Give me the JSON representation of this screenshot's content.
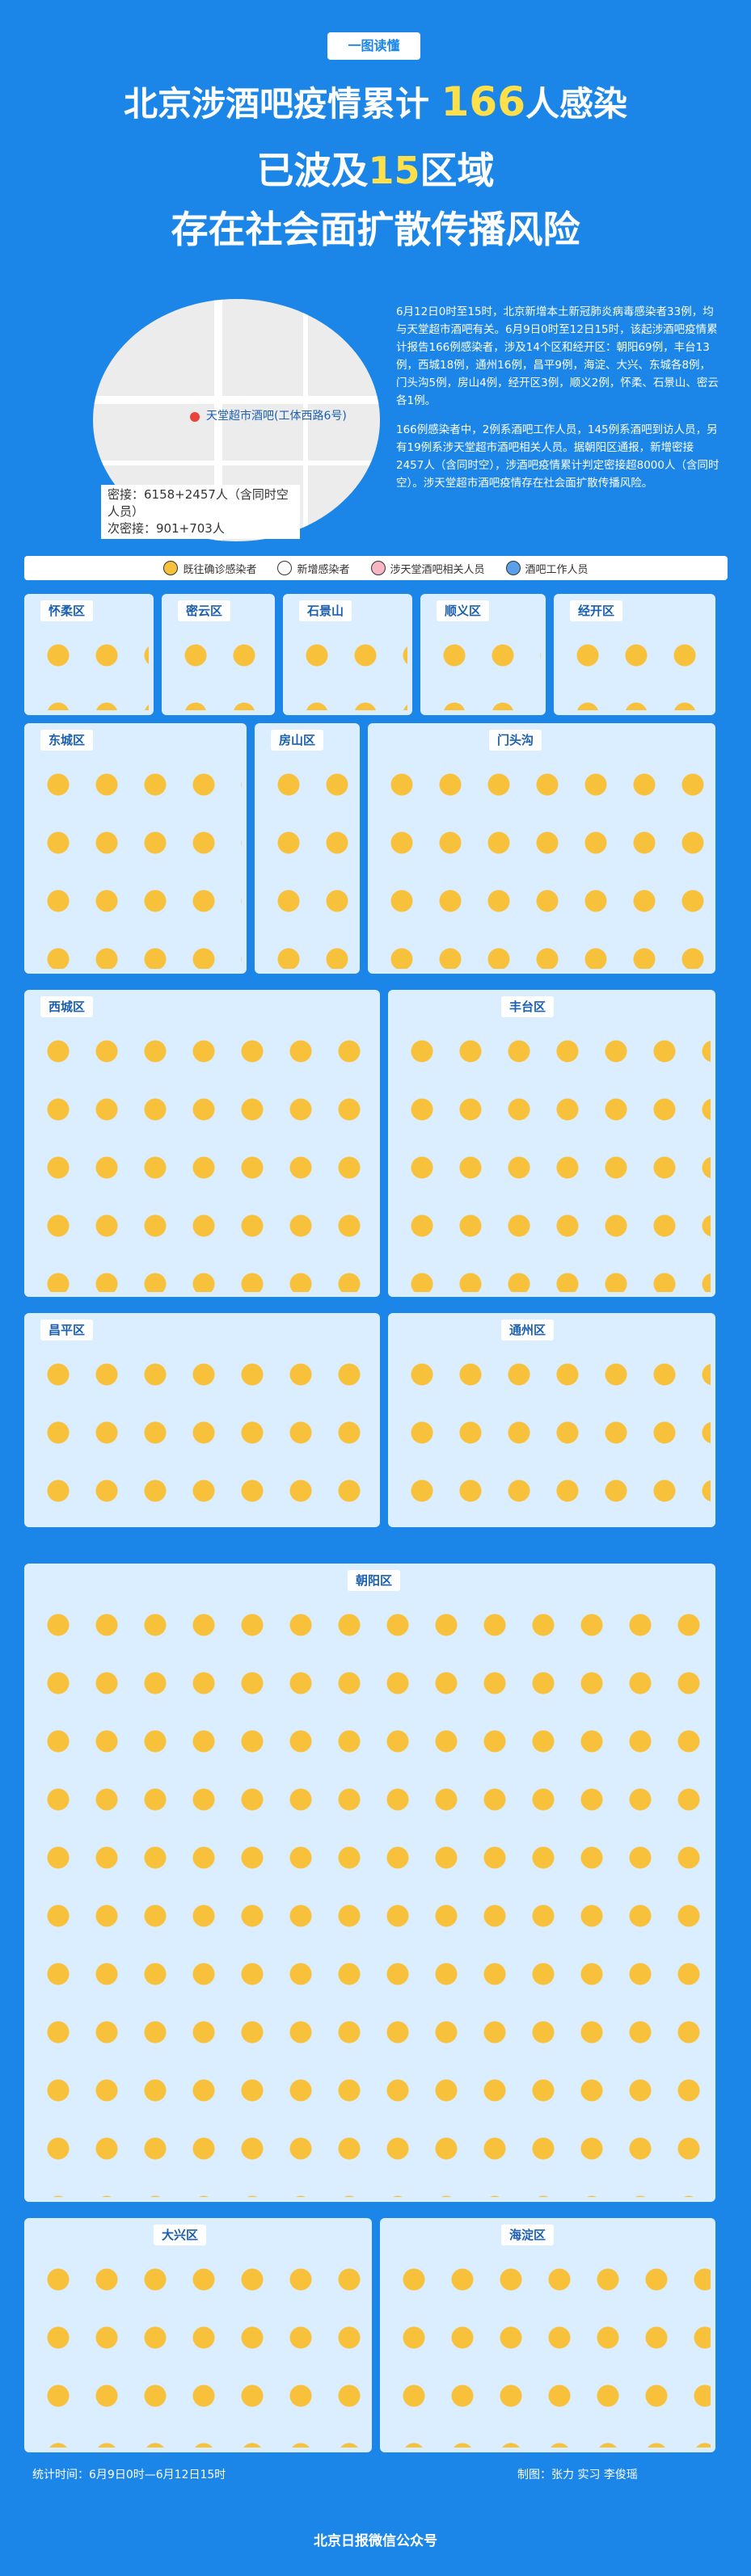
{
  "header": {
    "tag": "一图读懂",
    "line1_pre": "北京涉酒吧疫情累计",
    "line1_num": "166",
    "line1_post": "人感染",
    "line2_pre": "已波及",
    "line2_num": "15",
    "line2_post": "区域",
    "line3": "存在社会面扩散传播风险"
  },
  "map": {
    "place_label": "天堂超市酒吧(工体西路6号)",
    "contacts": "密接：6158+2457人（含同时空人员）",
    "secondary": "次密接：901+703人"
  },
  "intro": {
    "p1": "6月12日0时至15时，北京新增本土新冠肺炎病毒感染者33例，均与天堂超市酒吧有关。6月9日0时至12日15时，该起涉酒吧疫情累计报告166例感染者，涉及14个区和经开区：朝阳69例，丰台13例，西城18例，通州16例，昌平9例，海淀、大兴、东城各8例，门头沟5例，房山4例，经开区3例，顺义2例，怀柔、石景山、密云各1例。",
    "p2": "166例感染者中，2例系酒吧工作人员，145例系酒吧到访人员，另有19例系涉天堂超市酒吧相关人员。据朝阳区通报，新增密接2457人（含同时空），涉酒吧疫情累计判定密接超8000人（含同时空）。涉天堂超市酒吧疫情存在社会面扩散传播风险。"
  },
  "legend": {
    "items": [
      "既往确诊感染者",
      "新增感染者",
      "涉天堂酒吧相关人员",
      "酒吧工作人员"
    ],
    "colors": [
      "#f8c13b",
      "#fff",
      "#f7b6c4",
      "#5aa0e8"
    ]
  },
  "districts": [
    "怀柔区",
    "密云区",
    "石景山",
    "顺义区",
    "经开区",
    "东城区",
    "房山区",
    "门头沟",
    "西城区",
    "丰台区",
    "昌平区",
    "通州区",
    "朝阳区",
    "大兴区",
    "海淀区"
  ],
  "footer": {
    "time": "统计时间：6月9日0时—6月12日15时",
    "credit": "制图：张力 实习 李俊瑶",
    "brand": "北京日报微信公众号"
  }
}
